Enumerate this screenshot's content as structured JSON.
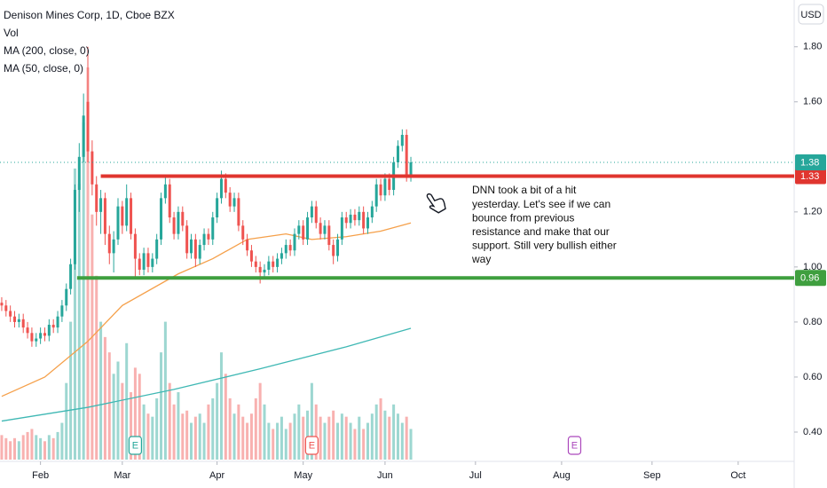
{
  "chart_data": {
    "type": "candlestick",
    "title": "Denison Mines Corp, 1D, Cboe BZX",
    "volume_name": "Vol",
    "currency": "USD",
    "colors": {
      "up": "#26a69a",
      "down": "#ef5350"
    },
    "open": [
      0.87,
      0.86,
      0.84,
      0.82,
      0.8,
      0.81,
      0.78,
      0.76,
      0.73,
      0.74,
      0.76,
      0.75,
      0.79,
      0.78,
      0.82,
      0.86,
      0.92,
      1.01,
      1.28,
      1.4,
      1.6,
      1.42,
      1.3,
      1.2,
      1.25,
      1.12,
      1.05,
      1.1,
      1.22,
      1.15,
      1.25,
      1.12,
      1.03,
      0.99,
      1.05,
      1.0,
      1.03,
      1.1,
      1.25,
      1.3,
      1.18,
      1.12,
      1.2,
      1.15,
      1.05,
      1.1,
      1.03,
      1.08,
      1.12,
      1.1,
      1.18,
      1.25,
      1.32,
      1.27,
      1.22,
      1.25,
      1.15,
      1.1,
      1.06,
      1.02,
      1.0,
      0.98,
      0.99,
      1.02,
      1.0,
      1.03,
      1.05,
      1.08,
      1.06,
      1.12,
      1.15,
      1.1,
      1.18,
      1.22,
      1.16,
      1.12,
      1.15,
      1.08,
      1.04,
      1.1,
      1.18,
      1.16,
      1.19,
      1.17,
      1.2,
      1.14,
      1.18,
      1.22,
      1.3,
      1.26,
      1.32,
      1.28,
      1.38,
      1.44,
      1.48,
      1.33
    ],
    "high": [
      0.89,
      0.88,
      0.86,
      0.84,
      0.83,
      0.83,
      0.8,
      0.78,
      0.76,
      0.78,
      0.78,
      0.81,
      0.81,
      0.84,
      0.88,
      0.94,
      1.03,
      1.3,
      1.45,
      1.63,
      1.8,
      1.46,
      1.33,
      1.28,
      1.27,
      1.15,
      1.13,
      1.25,
      1.24,
      1.3,
      1.27,
      1.14,
      1.05,
      1.07,
      1.07,
      1.05,
      1.12,
      1.27,
      1.33,
      1.32,
      1.2,
      1.22,
      1.22,
      1.17,
      1.12,
      1.12,
      1.1,
      1.14,
      1.14,
      1.2,
      1.27,
      1.35,
      1.34,
      1.29,
      1.27,
      1.27,
      1.17,
      1.12,
      1.08,
      1.04,
      1.02,
      1.01,
      1.04,
      1.04,
      1.05,
      1.07,
      1.1,
      1.1,
      1.14,
      1.17,
      1.17,
      1.2,
      1.24,
      1.24,
      1.18,
      1.17,
      1.17,
      1.1,
      1.12,
      1.2,
      1.2,
      1.21,
      1.21,
      1.22,
      1.22,
      1.2,
      1.24,
      1.32,
      1.32,
      1.34,
      1.34,
      1.4,
      1.46,
      1.5,
      1.5,
      1.4
    ],
    "low": [
      0.84,
      0.82,
      0.8,
      0.78,
      0.78,
      0.76,
      0.74,
      0.71,
      0.71,
      0.72,
      0.73,
      0.73,
      0.76,
      0.76,
      0.8,
      0.84,
      0.9,
      0.99,
      1.2,
      1.38,
      1.38,
      1.26,
      1.15,
      1.12,
      1.08,
      1.01,
      0.98,
      1.08,
      1.12,
      1.13,
      1.1,
      0.96,
      0.97,
      0.97,
      0.98,
      0.98,
      1.01,
      1.08,
      1.23,
      1.16,
      1.1,
      1.1,
      1.13,
      1.03,
      1.03,
      1.0,
      1.01,
      1.06,
      1.08,
      1.08,
      1.16,
      1.23,
      1.25,
      1.2,
      1.2,
      1.13,
      1.08,
      1.04,
      1.0,
      0.98,
      0.94,
      0.96,
      0.97,
      0.98,
      0.98,
      1.01,
      1.03,
      1.04,
      1.04,
      1.1,
      1.08,
      1.08,
      1.16,
      1.14,
      1.1,
      1.1,
      1.06,
      1.01,
      1.02,
      1.08,
      1.14,
      1.14,
      1.15,
      1.15,
      1.12,
      1.12,
      1.16,
      1.2,
      1.24,
      1.24,
      1.26,
      1.26,
      1.36,
      1.42,
      1.31,
      1.31
    ],
    "close": [
      0.86,
      0.84,
      0.82,
      0.8,
      0.81,
      0.78,
      0.76,
      0.73,
      0.74,
      0.76,
      0.75,
      0.79,
      0.78,
      0.82,
      0.86,
      0.92,
      1.01,
      1.28,
      1.4,
      1.55,
      1.42,
      1.3,
      1.2,
      1.25,
      1.12,
      1.05,
      1.1,
      1.22,
      1.15,
      1.25,
      1.12,
      1.03,
      0.99,
      1.05,
      1.0,
      1.03,
      1.1,
      1.25,
      1.3,
      1.18,
      1.12,
      1.2,
      1.15,
      1.05,
      1.1,
      1.03,
      1.08,
      1.12,
      1.1,
      1.18,
      1.25,
      1.32,
      1.27,
      1.22,
      1.25,
      1.15,
      1.1,
      1.06,
      1.02,
      1.0,
      0.98,
      0.99,
      1.02,
      1.0,
      1.03,
      1.05,
      1.08,
      1.06,
      1.12,
      1.15,
      1.1,
      1.18,
      1.22,
      1.16,
      1.12,
      1.15,
      1.08,
      1.04,
      1.1,
      1.18,
      1.16,
      1.19,
      1.17,
      1.2,
      1.14,
      1.18,
      1.22,
      1.3,
      1.26,
      1.32,
      1.28,
      1.38,
      1.44,
      1.48,
      1.33,
      1.38
    ],
    "volume": [
      8,
      7,
      6,
      7,
      6,
      8,
      9,
      10,
      8,
      7,
      6,
      8,
      7,
      9,
      12,
      25,
      45,
      95,
      90,
      110,
      128,
      80,
      60,
      45,
      40,
      35,
      28,
      32,
      25,
      38,
      22,
      30,
      28,
      18,
      15,
      14,
      20,
      35,
      45,
      25,
      18,
      22,
      15,
      16,
      12,
      14,
      15,
      12,
      18,
      20,
      25,
      35,
      28,
      20,
      15,
      18,
      14,
      12,
      15,
      20,
      25,
      18,
      12,
      10,
      12,
      14,
      10,
      12,
      15,
      18,
      14,
      16,
      25,
      18,
      14,
      12,
      14,
      16,
      12,
      15,
      14,
      12,
      10,
      14,
      10,
      12,
      15,
      18,
      20,
      16,
      14,
      18,
      15,
      12,
      14,
      10
    ],
    "volume_ylim": [
      0,
      150
    ],
    "series": [
      {
        "name": "MA (200, close, 0)",
        "color": "#3fb8b4",
        "x": [
          0,
          20,
          40,
          60,
          80,
          95
        ],
        "values": [
          0.44,
          0.49,
          0.555,
          0.63,
          0.71,
          0.777
        ]
      },
      {
        "name": "MA (50, close, 0)",
        "color": "#f5a04a",
        "x": [
          0,
          10,
          20,
          28,
          41,
          49,
          57,
          66,
          72,
          80,
          88,
          95
        ],
        "values": [
          0.53,
          0.6,
          0.73,
          0.86,
          0.975,
          1.03,
          1.1,
          1.12,
          1.1,
          1.11,
          1.13,
          1.16
        ]
      }
    ],
    "levels": [
      {
        "value": 1.33,
        "label": "1.33",
        "color": "#e0352f",
        "start": 23
      },
      {
        "value": 0.96,
        "label": "0.96",
        "color": "#3f9f3f",
        "start": 17.5
      }
    ],
    "last_price": {
      "value": 1.38,
      "label": "1.38",
      "color": "#26a69a"
    },
    "events": [
      {
        "x": 31,
        "label": "E",
        "color": "#26a69a"
      },
      {
        "x": 72,
        "label": "E",
        "color": "#ef5350"
      },
      {
        "x": 133,
        "label": "E",
        "color": "#ab47bc"
      }
    ],
    "annotation": [
      "DNN took a bit of a hit",
      "yesterday. Let's see if we can",
      "bounce from previous",
      "resistance and make that our",
      "support. Still very bullish either",
      "way"
    ],
    "ylim": [
      0.3,
      1.97
    ],
    "yticks": [
      {
        "value": 0.4,
        "label": "0.40"
      },
      {
        "value": 0.6,
        "label": "0.60"
      },
      {
        "value": 0.8,
        "label": "0.80"
      },
      {
        "value": 1.0,
        "label": "1.00"
      },
      {
        "value": 1.2,
        "label": "1.20"
      },
      {
        "value": 1.6,
        "label": "1.60"
      },
      {
        "value": 1.8,
        "label": "1.80"
      }
    ],
    "xlim": [
      -0.4,
      184
    ],
    "xticks": [
      {
        "value": 9,
        "label": "Feb"
      },
      {
        "value": 28,
        "label": "Mar"
      },
      {
        "value": 50,
        "label": "Apr"
      },
      {
        "value": 70,
        "label": "May"
      },
      {
        "value": 89,
        "label": "Jun"
      },
      {
        "value": 110,
        "label": "Jul"
      },
      {
        "value": 130,
        "label": "Aug"
      },
      {
        "value": 151,
        "label": "Sep"
      },
      {
        "value": 171,
        "label": "Oct"
      }
    ]
  }
}
